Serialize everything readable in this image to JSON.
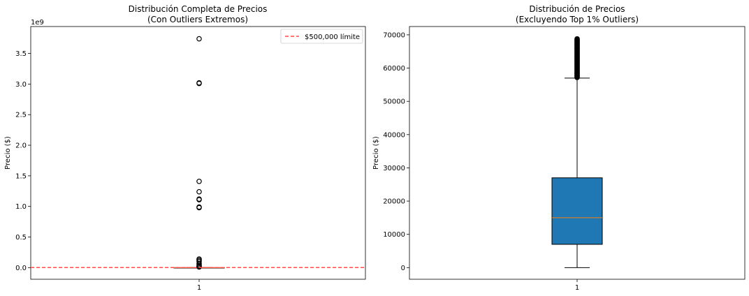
{
  "chart_data": [
    {
      "type": "box",
      "title_line1": "Distribución Completa de Precios",
      "title_line2": "(Con Outliers Extremos)",
      "xlabel": "",
      "ylabel": "Precio ($)",
      "categories": [
        "1"
      ],
      "y_scale_note": "1e9",
      "ylim": [
        -0.19,
        3.94
      ],
      "yticks": [
        0.0,
        0.5,
        1.0,
        1.5,
        2.0,
        2.5,
        3.0,
        3.5
      ],
      "ytick_labels": [
        "0.0",
        "0.5",
        "1.0",
        "1.5",
        "2.0",
        "2.5",
        "3.0",
        "3.5"
      ],
      "box": {
        "q1": 7e-06,
        "median": 1.5e-05,
        "q3": 2.7e-05,
        "whisker_low": 0.0,
        "whisker_high": 5.7e-05
      },
      "outliers": [
        3.74,
        3.02,
        3.01,
        1.41,
        1.24,
        1.12,
        1.11,
        0.99,
        0.98,
        0.14,
        0.12,
        0.1,
        0.07,
        0.05,
        0.03,
        0.02,
        0.01
      ],
      "reference_line": {
        "value": 0.0005,
        "label": "$500,000 límite",
        "color": "#ff4c4c"
      },
      "legend_position": "top-right",
      "median_color": "#ff7f0e"
    },
    {
      "type": "box",
      "title_line1": "Distribución de Precios",
      "title_line2": "(Excluyendo Top 1% Outliers)",
      "xlabel": "",
      "ylabel": "Precio ($)",
      "categories": [
        "1"
      ],
      "ylim": [
        -3500,
        72500
      ],
      "yticks": [
        0,
        10000,
        20000,
        30000,
        40000,
        50000,
        60000,
        70000
      ],
      "ytick_labels": [
        "0",
        "10000",
        "20000",
        "30000",
        "40000",
        "50000",
        "60000",
        "70000"
      ],
      "box": {
        "q1": 7000,
        "median": 15000,
        "q3": 27000,
        "whisker_low": 0,
        "whisker_high": 57000
      },
      "outlier_range": [
        57200,
        68800
      ],
      "box_color": "#1f77b4",
      "median_color": "#ff7f0e"
    }
  ]
}
